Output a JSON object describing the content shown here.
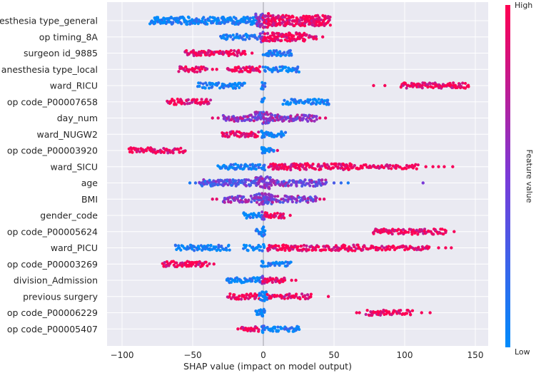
{
  "chart_data": {
    "type": "scatter",
    "subtype": "shap-beeswarm",
    "xlabel": "SHAP value (impact on model output)",
    "xlim": [
      -107,
      155
    ],
    "xticks": [
      -100,
      -50,
      0,
      50,
      100,
      150
    ],
    "xtick_labels": [
      "−100",
      "−50",
      "0",
      "50",
      "100",
      "150"
    ],
    "colorbar": {
      "label": "Feature value",
      "high": "High",
      "low": "Low",
      "high_color": "#ff0052",
      "low_color": "#008bfb"
    },
    "colors": {
      "background": "#eaeaf2",
      "grid": "#ffffff",
      "zero_line": "#a0a0a8"
    },
    "features": [
      {
        "name": "anesthesia type_general",
        "segments": [
          [
            -80,
            -5,
            0.02,
            0.6
          ],
          [
            -5,
            0,
            0.5,
            1.2
          ],
          [
            0,
            4,
            0.9,
            1.3
          ],
          [
            4,
            48,
            0.98,
            0.9
          ]
        ]
      },
      {
        "name": "op timing_8A",
        "segments": [
          [
            -30,
            -2,
            0.03,
            0.4
          ],
          [
            -2,
            0,
            0.5,
            1.0
          ],
          [
            0,
            30,
            0.97,
            0.7
          ],
          [
            30,
            38,
            0.97,
            0.3
          ]
        ],
        "points": [
          [
            42,
            0.97
          ]
        ]
      },
      {
        "name": "surgeon id_9885",
        "segments": [
          [
            -55,
            -12,
            0.97,
            0.4
          ],
          [
            0,
            20,
            0.03,
            0.4
          ]
        ],
        "points": [
          [
            -8,
            0.97
          ]
        ]
      },
      {
        "name": "anesthesia type_local",
        "segments": [
          [
            -60,
            -40,
            0.97,
            0.4
          ],
          [
            -25,
            -2,
            0.97,
            0.4
          ],
          [
            0,
            26,
            0.03,
            0.4
          ]
        ],
        "points": [
          [
            -36,
            0.97
          ],
          [
            -33,
            0.97
          ]
        ]
      },
      {
        "name": "ward_RICU",
        "segments": [
          [
            -46,
            -13,
            0.03,
            0.4
          ],
          [
            -1,
            1,
            0.05,
            0.6
          ],
          [
            97,
            146,
            0.97,
            0.4
          ]
        ],
        "points": [
          [
            78,
            0.97
          ],
          [
            86,
            0.97
          ]
        ]
      },
      {
        "name": "op code_P00007658",
        "segments": [
          [
            -68,
            -37,
            0.97,
            0.4
          ],
          [
            14,
            47,
            0.03,
            0.4
          ],
          [
            -1,
            1,
            0.05,
            0.6
          ]
        ]
      },
      {
        "name": "day_num",
        "segments": [
          [
            -28,
            -6,
            0.6,
            0.5
          ],
          [
            -6,
            6,
            0.5,
            1.1
          ],
          [
            6,
            38,
            0.55,
            0.5
          ]
        ],
        "points": [
          [
            -36,
            0.9
          ],
          [
            -32,
            0.9
          ],
          [
            40,
            0.9
          ],
          [
            44,
            0.9
          ]
        ]
      },
      {
        "name": "ward_NUGW2",
        "segments": [
          [
            -29,
            -3,
            0.97,
            0.4
          ],
          [
            -1,
            1,
            0.05,
            0.6
          ],
          [
            0,
            16,
            0.03,
            0.4
          ]
        ]
      },
      {
        "name": "op code_P00003920",
        "segments": [
          [
            -95,
            -55,
            0.97,
            0.4
          ],
          [
            -1,
            1,
            0.05,
            0.6
          ],
          [
            1,
            8,
            0.03,
            0.3
          ]
        ],
        "points": [
          [
            10,
            0.9
          ]
        ]
      },
      {
        "name": "ward_SICU",
        "segments": [
          [
            -32,
            -2,
            0.03,
            0.4
          ],
          [
            -1,
            1,
            0.05,
            0.6
          ],
          [
            4,
            62,
            0.97,
            0.5
          ],
          [
            62,
            110,
            0.97,
            0.3
          ]
        ],
        "points": [
          [
            115,
            0.97
          ],
          [
            120,
            0.97
          ],
          [
            124,
            0.97
          ],
          [
            128,
            0.97
          ],
          [
            134,
            0.97
          ]
        ]
      },
      {
        "name": "age",
        "segments": [
          [
            -45,
            -5,
            0.35,
            0.5
          ],
          [
            -5,
            5,
            0.5,
            1.1
          ],
          [
            5,
            45,
            0.5,
            0.5
          ]
        ],
        "points": [
          [
            -52,
            0.1
          ],
          [
            -48,
            0.2
          ],
          [
            50,
            0.3
          ],
          [
            55,
            0.2
          ],
          [
            60,
            0.1
          ],
          [
            113,
            0.5
          ]
        ]
      },
      {
        "name": "BMI",
        "segments": [
          [
            -28,
            -6,
            0.55,
            0.5
          ],
          [
            -6,
            6,
            0.5,
            1.0
          ],
          [
            6,
            38,
            0.5,
            0.5
          ]
        ],
        "points": [
          [
            -36,
            0.9
          ],
          [
            -33,
            0.9
          ],
          [
            40,
            0.9
          ],
          [
            43,
            0.9
          ]
        ]
      },
      {
        "name": "gender_code",
        "segments": [
          [
            -14,
            -1,
            0.03,
            0.4
          ],
          [
            -1,
            1,
            0.5,
            0.7
          ],
          [
            1,
            15,
            0.97,
            0.4
          ]
        ],
        "points": [
          [
            19,
            0.97
          ]
        ]
      },
      {
        "name": "op code_P00005624",
        "segments": [
          [
            -5,
            0,
            0.03,
            0.5
          ],
          [
            -1,
            1,
            0.05,
            0.8
          ],
          [
            78,
            130,
            0.97,
            0.4
          ]
        ],
        "points": [
          [
            135,
            0.97
          ]
        ]
      },
      {
        "name": "ward_PICU",
        "segments": [
          [
            -62,
            -24,
            0.03,
            0.4
          ],
          [
            -14,
            -2,
            0.03,
            0.4
          ],
          [
            -1,
            1,
            0.05,
            0.6
          ],
          [
            3,
            70,
            0.97,
            0.45
          ],
          [
            70,
            118,
            0.97,
            0.3
          ]
        ],
        "points": [
          [
            124,
            0.97
          ],
          [
            129,
            0.97
          ],
          [
            133,
            0.97
          ]
        ]
      },
      {
        "name": "op code_P00003269",
        "segments": [
          [
            -71,
            -38,
            0.97,
            0.4
          ],
          [
            -1,
            1,
            0.05,
            0.6
          ],
          [
            3,
            20,
            0.03,
            0.3
          ]
        ],
        "points": [
          [
            -35,
            0.97
          ]
        ]
      },
      {
        "name": "division_Admission",
        "segments": [
          [
            -26,
            -1,
            0.03,
            0.4
          ],
          [
            -1,
            1,
            0.5,
            0.7
          ],
          [
            0,
            16,
            0.97,
            0.4
          ]
        ],
        "points": [
          [
            20,
            0.97
          ],
          [
            23,
            0.97
          ]
        ]
      },
      {
        "name": "previous surgery",
        "segments": [
          [
            -25,
            -3,
            0.97,
            0.4
          ],
          [
            -3,
            3,
            0.05,
            0.8
          ],
          [
            3,
            34,
            0.97,
            0.4
          ]
        ],
        "points": [
          [
            46,
            0.97
          ]
        ]
      },
      {
        "name": "op code_P00006229",
        "segments": [
          [
            -5,
            0,
            0.03,
            0.5
          ],
          [
            -1,
            1,
            0.05,
            0.7
          ],
          [
            73,
            106,
            0.97,
            0.4
          ]
        ],
        "points": [
          [
            66,
            0.97
          ],
          [
            68,
            0.97
          ],
          [
            112,
            0.97
          ],
          [
            118,
            0.97
          ]
        ]
      },
      {
        "name": "op code_P00005407",
        "segments": [
          [
            -16,
            -3,
            0.97,
            0.4
          ],
          [
            -1,
            1,
            0.05,
            0.6
          ],
          [
            3,
            26,
            0.03,
            0.4
          ]
        ],
        "points": [
          [
            -18,
            0.97
          ]
        ]
      }
    ]
  }
}
